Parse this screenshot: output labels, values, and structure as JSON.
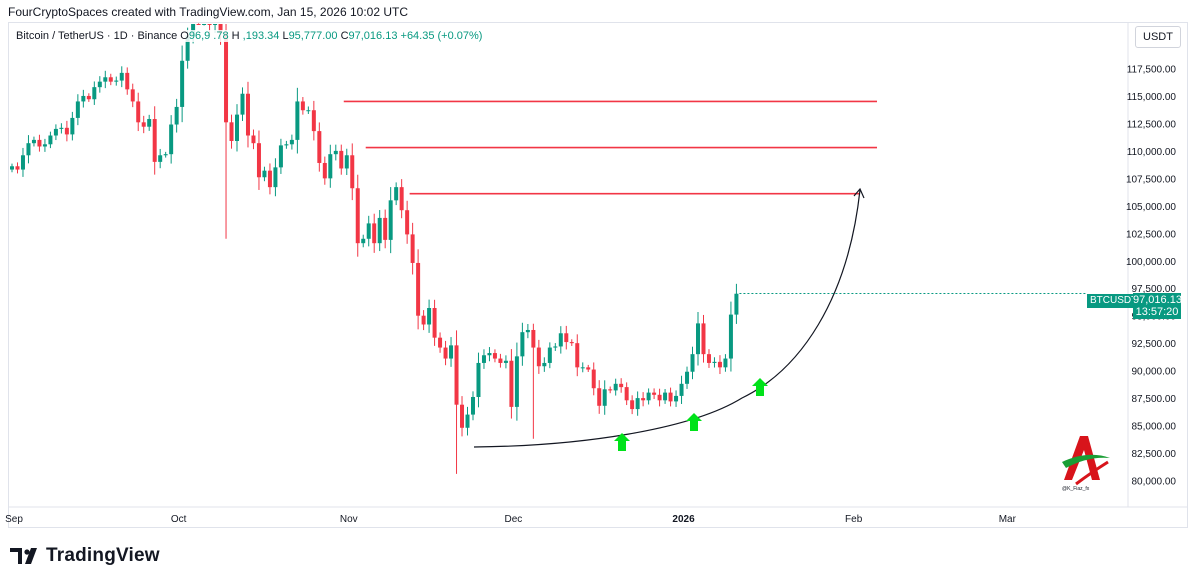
{
  "caption": "FourCryptoSpaces created with TradingView.com, Jan 15, 2026 10:02 UTC",
  "legend": {
    "symbol": "Bitcoin / TetherUS · 1D · Binance",
    "o_label": "O",
    "o_value": "96,9  .78",
    "h_label": "H",
    "h_value": "  ,193.34",
    "l_label": "L",
    "l_value": "95,777.00",
    "c_label": "C",
    "c_value": "97,016.13",
    "change": "+64.35 (+0.07%)"
  },
  "currency": "USDT",
  "price_tag": {
    "symbol": "BTCUSDT",
    "price": "97,016.13",
    "countdown": "13:57:20"
  },
  "brand": {
    "name": "TradingView",
    "logo_icon": "tradingview-logo-icon"
  },
  "watermark": {
    "icon": "k-fiaz-logo-icon",
    "text": "@K_Fiaz_fx"
  },
  "colors": {
    "up": "#089981",
    "down": "#f23645",
    "resistance": "#f23645",
    "curve": "#131722",
    "arrow": "#00e21a"
  },
  "chart_data": {
    "type": "candlestick",
    "symbol": "BTCUSDT",
    "interval": "1D",
    "ylim": [
      79000,
      119500
    ],
    "y_ticks": [
      80000,
      82500,
      85000,
      87500,
      90000,
      92500,
      95000,
      97500,
      100000,
      102500,
      105000,
      107500,
      110000,
      112500,
      115000,
      117500
    ],
    "y_tick_labels": [
      "80,000.00",
      "82,500.00",
      "85,000.00",
      "87,500.00",
      "90,000.00",
      "92,500.00",
      "95,000.00",
      "97,500.00",
      "100,000.00",
      "102,500.00",
      "105,000.00",
      "107,500.00",
      "110,000.00",
      "112,500.00",
      "115,000.00",
      "117,500.00"
    ],
    "x_ticks": [
      {
        "label": "Sep",
        "index": 0
      },
      {
        "label": "Oct",
        "index": 30
      },
      {
        "label": "Nov",
        "index": 61
      },
      {
        "label": "Dec",
        "index": 91
      },
      {
        "label": "2026",
        "index": 122,
        "bold": true
      },
      {
        "label": "Feb",
        "index": 153
      },
      {
        "label": "Mar",
        "index": 181
      }
    ],
    "closes": [
      108600,
      108300,
      109600,
      110700,
      111000,
      110400,
      110600,
      111400,
      112000,
      112100,
      111500,
      113000,
      114500,
      115000,
      114700,
      115800,
      116300,
      116700,
      116300,
      116400,
      117100,
      115600,
      114500,
      112600,
      112200,
      112900,
      109000,
      109600,
      109700,
      112400,
      114000,
      118200,
      120500,
      122300,
      122100,
      124500,
      121500,
      123300,
      120700,
      112600,
      110900,
      113300,
      115200,
      111400,
      110700,
      107600,
      108200,
      106700,
      108500,
      110500,
      110600,
      111000,
      114500,
      113700,
      113700,
      111800,
      108900,
      107500,
      109700,
      110000,
      108400,
      109600,
      106600,
      101600,
      102000,
      103400,
      101600,
      103900,
      101900,
      105500,
      106700,
      104600,
      102400,
      99800,
      95000,
      94200,
      95700,
      93000,
      92100,
      91100,
      92300,
      86900,
      84800,
      86000,
      87600,
      90700,
      91400,
      91600,
      91100,
      90700,
      90900,
      86700,
      91300,
      93500,
      93700,
      92100,
      90400,
      90700,
      92100,
      92200,
      93400,
      92600,
      92500,
      90300,
      90300,
      90100,
      88400,
      86800,
      88300,
      88200,
      88800,
      88500,
      87300,
      86500,
      87500,
      87300,
      88000,
      87800,
      87300,
      88000,
      87200,
      87700,
      88800,
      89900,
      91500,
      94300,
      91500,
      90700,
      90800,
      90300,
      91100,
      95100,
      97000
    ]
  },
  "annotations": {
    "resistance_levels": [
      114500,
      110300,
      106100
    ],
    "support_curve": "rising",
    "up_arrows": 3
  }
}
